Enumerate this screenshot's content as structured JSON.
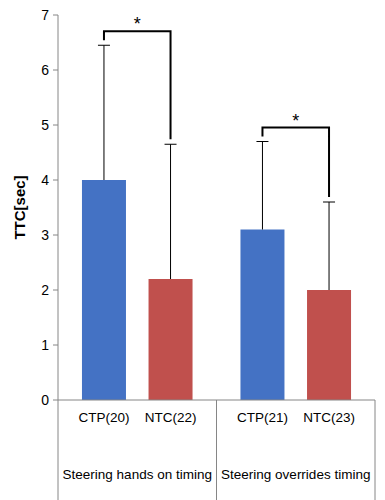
{
  "chart_data": {
    "type": "bar",
    "y_label": "TTC[sec]",
    "categories": [
      "CTP(20)",
      "NTC(22)",
      "CTP(21)",
      "NTC(23)"
    ],
    "values": [
      4.0,
      2.2,
      3.1,
      2.0
    ],
    "errors": [
      2.45,
      2.45,
      1.6,
      1.6
    ],
    "colors": [
      "#4472c4",
      "#c0504d",
      "#4472c4",
      "#c0504d"
    ],
    "groups": [
      {
        "label": "Steering hands on timing",
        "count": 2
      },
      {
        "label": "Steering overrides timing",
        "count": 2
      }
    ],
    "significance": [
      {
        "pair": [
          0,
          1
        ],
        "label": "*"
      },
      {
        "pair": [
          2,
          3
        ],
        "label": "*"
      }
    ],
    "ylim": [
      0,
      7
    ],
    "yticks": [
      0,
      1,
      2,
      3,
      4,
      5,
      6,
      7
    ],
    "grid": false
  }
}
